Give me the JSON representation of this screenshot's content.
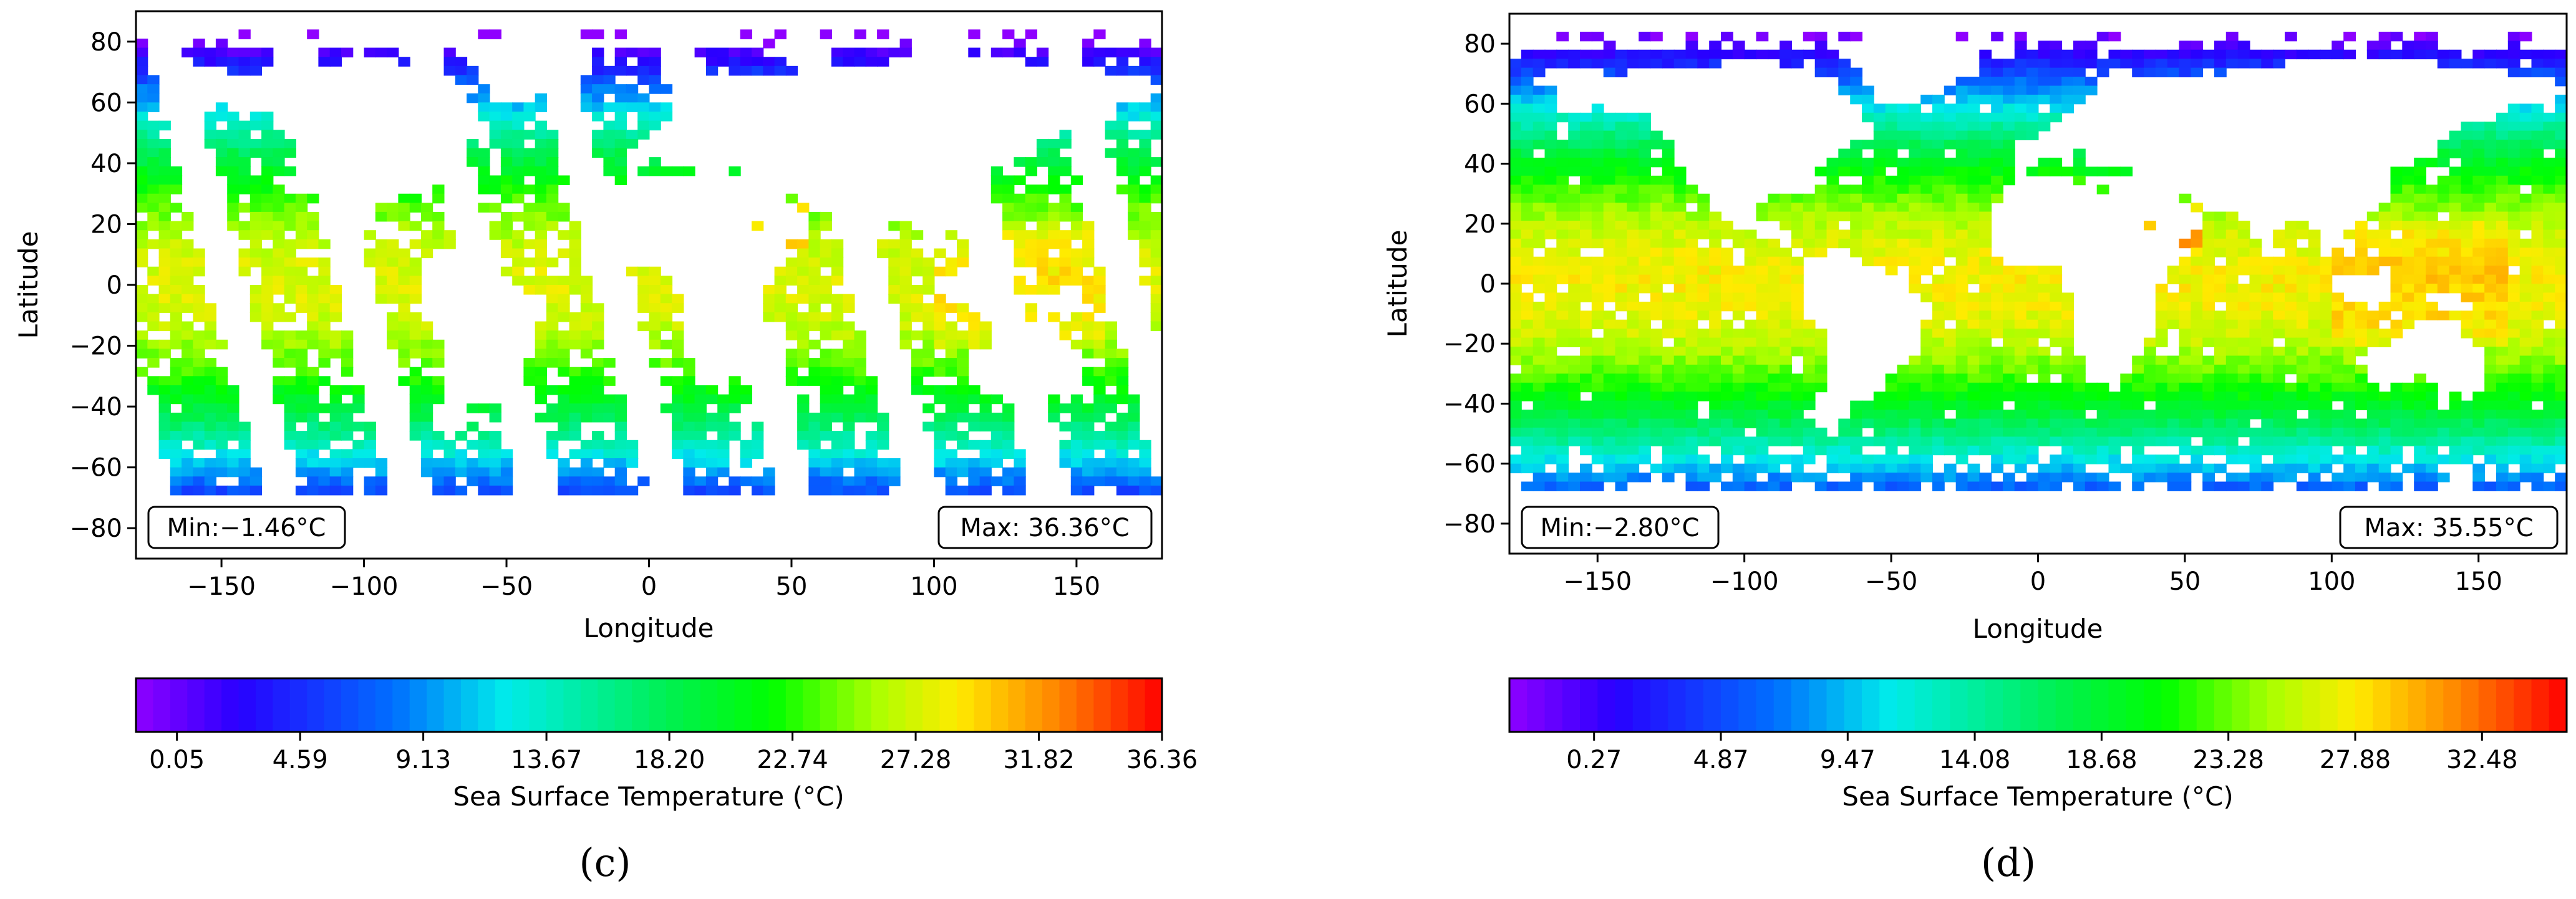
{
  "figure": {
    "panels": [
      {
        "label": "(c)",
        "min_text": "Min:−1.46°C",
        "max_text": "Max: 36.36°C",
        "colorbar": {
          "label": "Sea Surface Temperature (°C)",
          "range": [
            -1.46,
            36.36
          ],
          "ticks": [
            0.05,
            4.59,
            9.13,
            13.67,
            18.2,
            22.74,
            27.28,
            31.82,
            36.36
          ],
          "tick_labels": [
            "0.05",
            "4.59",
            "9.13",
            "13.67",
            "18.20",
            "22.74",
            "27.28",
            "31.82",
            "36.36"
          ]
        }
      },
      {
        "label": "(d)",
        "min_text": "Min:−2.80°C",
        "max_text": "Max: 35.55°C",
        "colorbar": {
          "label": "Sea Surface Temperature (°C)",
          "range": [
            -2.8,
            35.55
          ],
          "ticks": [
            0.27,
            4.87,
            9.47,
            14.08,
            18.68,
            23.28,
            27.88,
            32.48
          ],
          "tick_labels": [
            "0.27",
            "4.87",
            "9.47",
            "14.08",
            "18.68",
            "23.28",
            "27.88",
            "32.48"
          ]
        }
      }
    ]
  },
  "chart_data": [
    {
      "type": "heatmap",
      "panel": "(c)",
      "description_kind": "gridded sea surface temperature map with swath gaps",
      "xlabel": "Longitude",
      "ylabel": "Latitude",
      "xlim": [
        -180,
        180
      ],
      "ylim": [
        -90,
        90
      ],
      "xticks": [
        -150,
        -100,
        -50,
        0,
        50,
        100,
        150
      ],
      "xtick_labels": [
        "−150",
        "−100",
        "−50",
        "0",
        "50",
        "100",
        "150"
      ],
      "yticks": [
        -80,
        -60,
        -40,
        -20,
        0,
        20,
        40,
        60,
        80
      ],
      "ytick_labels": [
        "−80",
        "−60",
        "−40",
        "−20",
        "0",
        "20",
        "40",
        "60",
        "80"
      ],
      "value_min": -1.46,
      "value_max": 36.36,
      "units": "°C",
      "swath_gaps": true
    },
    {
      "type": "heatmap",
      "panel": "(d)",
      "description_kind": "gridded sea surface temperature map, near-complete coverage",
      "xlabel": "Longitude",
      "ylabel": "Latitude",
      "xlim": [
        -180,
        180
      ],
      "ylim": [
        -90,
        90
      ],
      "xticks": [
        -150,
        -100,
        -50,
        0,
        50,
        100,
        150
      ],
      "xtick_labels": [
        "−150",
        "−100",
        "−50",
        "0",
        "50",
        "100",
        "150"
      ],
      "yticks": [
        -80,
        -60,
        -40,
        -20,
        0,
        20,
        40,
        60,
        80
      ],
      "ytick_labels": [
        "−80",
        "−60",
        "−40",
        "−20",
        "0",
        "20",
        "40",
        "60",
        "80"
      ],
      "value_min": -2.8,
      "value_max": 35.55,
      "units": "°C",
      "swath_gaps": false
    }
  ]
}
